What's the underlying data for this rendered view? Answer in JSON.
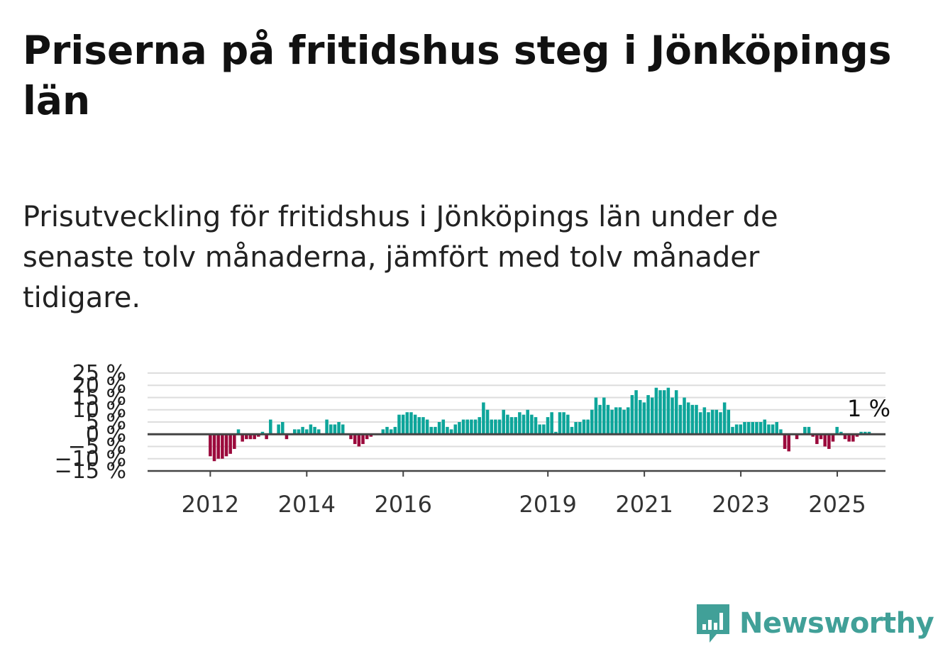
{
  "title": "Priserna på fritidshus steg i Jönköpings län",
  "subtitle": "Prisutveckling för fritidshus i Jönköpings län under de senaste tolv månaderna, jämfört med tolv månader tidigare.",
  "brand": "Newsworthy",
  "colors": {
    "positive": "#0da59a",
    "negative": "#9b0a3c",
    "grid": "#dddddd",
    "axis": "#444444",
    "brand": "#41a098"
  },
  "chart_data": {
    "type": "bar",
    "ylim": [
      -15,
      25
    ],
    "yticks": [
      25,
      20,
      15,
      10,
      5,
      0,
      -5,
      -10,
      -15
    ],
    "ytick_labels": [
      "25 %",
      "20 %",
      "15 %",
      "10 %",
      "5 %",
      "0 %",
      "−5 %",
      "−10 %",
      "−15 %"
    ],
    "xtick_labels": [
      "2012",
      "2014",
      "2016",
      "2019",
      "2021",
      "2023",
      "2025"
    ],
    "xtick_positions": [
      2012.0,
      2014.0,
      2016.0,
      2019.0,
      2021.0,
      2023.0,
      2025.0
    ],
    "x_range": [
      2010.7,
      2026.0
    ],
    "start": 2012.0,
    "step": 0.0833,
    "grid": true,
    "last_label": "1 %",
    "values": [
      -9,
      -11,
      -10,
      -10,
      -9,
      -8,
      -6,
      2,
      -3,
      -2,
      -2,
      -2,
      -1,
      1,
      -2,
      6,
      0,
      4,
      5,
      -2,
      0,
      2,
      2,
      3,
      2,
      4,
      3,
      2,
      0,
      6,
      4,
      4,
      5,
      4,
      0,
      -2,
      -4,
      -5,
      -4,
      -2,
      -1,
      0,
      0,
      2,
      3,
      2,
      3,
      8,
      8,
      9,
      9,
      8,
      7,
      7,
      6,
      3,
      3,
      5,
      6,
      3,
      2,
      4,
      5,
      6,
      6,
      6,
      6,
      7,
      13,
      10,
      6,
      6,
      6,
      10,
      8,
      7,
      7,
      9,
      8,
      10,
      8,
      7,
      4,
      4,
      7,
      9,
      1,
      9,
      9,
      8,
      3,
      5,
      5,
      6,
      6,
      10,
      15,
      12,
      15,
      12,
      10,
      11,
      11,
      10,
      11,
      16,
      18,
      14,
      13,
      16,
      15,
      19,
      18,
      18,
      19,
      15,
      18,
      12,
      15,
      13,
      12,
      12,
      9,
      11,
      9,
      10,
      10,
      9,
      13,
      10,
      3,
      4,
      4,
      5,
      5,
      5,
      5,
      5,
      6,
      4,
      4,
      5,
      2,
      -6,
      -7,
      0,
      -2,
      0,
      3,
      3,
      -1,
      -4,
      -2,
      -5,
      -6,
      -3,
      3,
      1,
      -2,
      -3,
      -3,
      -1,
      1,
      1,
      1
    ]
  }
}
